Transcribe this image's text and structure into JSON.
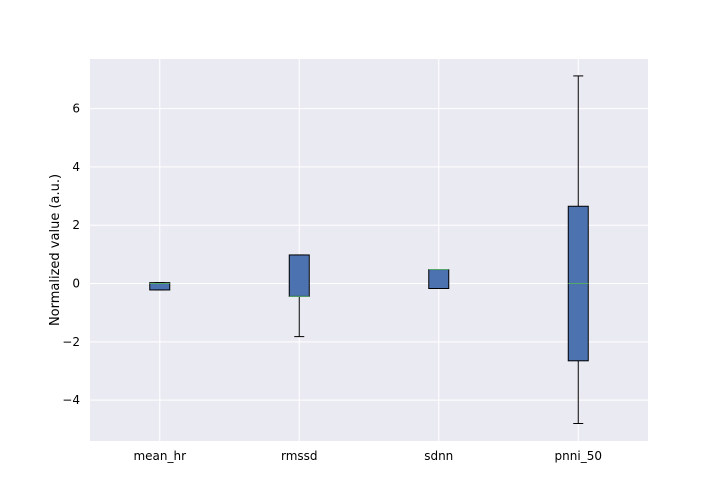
{
  "chart_data": {
    "type": "box",
    "title": "",
    "xlabel": "",
    "ylabel": "Normalized value (a.u.)",
    "categories": [
      "mean_hr",
      "rmssd",
      "sdnn",
      "pnni_50"
    ],
    "boxes": [
      {
        "category": "mean_hr",
        "whisker_low": -0.22,
        "q1": -0.22,
        "median": 0.0,
        "q3": 0.03,
        "whisker_high": 0.03
      },
      {
        "category": "rmssd",
        "whisker_low": -1.82,
        "q1": -0.44,
        "median": -0.44,
        "q3": 0.98,
        "whisker_high": 0.98
      },
      {
        "category": "sdnn",
        "whisker_low": -0.17,
        "q1": -0.17,
        "median": 0.48,
        "q3": 0.48,
        "whisker_high": 0.48
      },
      {
        "category": "pnni_50",
        "whisker_low": -4.8,
        "q1": -2.65,
        "median": 0.0,
        "q3": 2.65,
        "whisker_high": 7.12
      }
    ],
    "ylim": [
      -5.4,
      7.7
    ],
    "yticks": [
      -4,
      -2,
      0,
      2,
      4,
      6
    ],
    "ytick_labels": [
      "−4",
      "−2",
      "0",
      "2",
      "4",
      "6"
    ],
    "grid": true,
    "colors": {
      "box_fill": "#4c72b0",
      "box_edge": "#000000",
      "median": "#55a868",
      "plot_background": "#eaeaf2",
      "grid": "#ffffff",
      "whisker": "#000000"
    }
  }
}
